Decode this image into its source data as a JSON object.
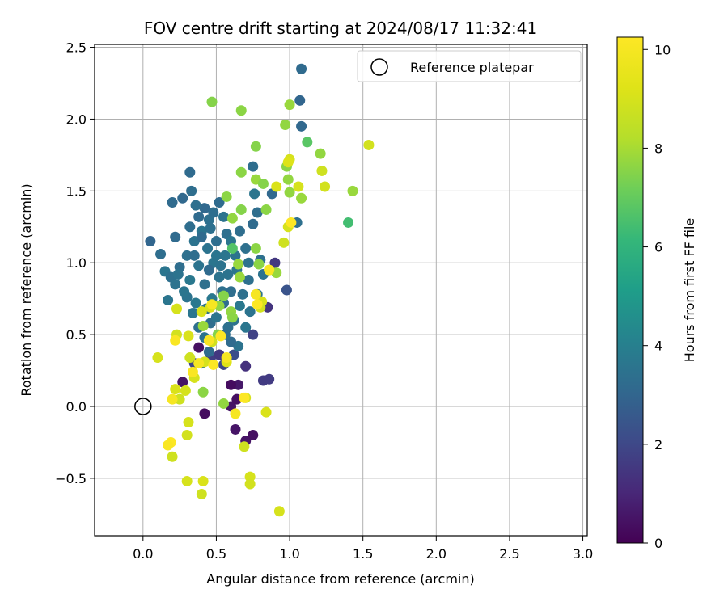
{
  "chart_data": {
    "type": "scatter",
    "title": "FOV centre drift starting at 2024/08/17 11:32:41",
    "xlabel": "Angular distance from reference (arcmin)",
    "ylabel": "Rotation from reference (arcmin)",
    "xlim": [
      -0.33,
      3.03
    ],
    "ylim": [
      -0.9,
      2.52
    ],
    "xticks": [
      0.0,
      0.5,
      1.0,
      1.5,
      2.0,
      2.5,
      3.0
    ],
    "yticks": [
      -0.5,
      0.0,
      0.5,
      1.0,
      1.5,
      2.0,
      2.5
    ],
    "xtick_labels": [
      "0.0",
      "0.5",
      "1.0",
      "1.5",
      "2.0",
      "2.5",
      "3.0"
    ],
    "ytick_labels": [
      "−0.5",
      "0.0",
      "0.5",
      "1.0",
      "1.5",
      "2.0",
      "2.5"
    ],
    "grid": true,
    "legend": {
      "position": "top-right",
      "entries": [
        "Reference platepar"
      ]
    },
    "reference_point": {
      "x": 0.0,
      "y": 0.0,
      "label": "Reference platepar"
    },
    "colorbar": {
      "label": "Hours from first FF file",
      "colormap": "viridis",
      "range": [
        0,
        10.25
      ],
      "ticks": [
        0,
        2,
        4,
        6,
        8,
        10
      ],
      "tick_labels": [
        "0",
        "2",
        "4",
        "6",
        "8",
        "10"
      ]
    },
    "points": [
      {
        "x": 0.27,
        "y": 0.17,
        "h": 0.5
      },
      {
        "x": 0.38,
        "y": 0.41,
        "h": 0.4
      },
      {
        "x": 0.42,
        "y": -0.05,
        "h": 0.3
      },
      {
        "x": 0.6,
        "y": 0.0,
        "h": 0.5
      },
      {
        "x": 0.64,
        "y": 0.05,
        "h": 0.4
      },
      {
        "x": 0.63,
        "y": -0.16,
        "h": 0.5
      },
      {
        "x": 0.65,
        "y": 0.15,
        "h": 0.6
      },
      {
        "x": 0.7,
        "y": -0.24,
        "h": 0.5
      },
      {
        "x": 0.75,
        "y": -0.2,
        "h": 0.4
      },
      {
        "x": 0.6,
        "y": 0.15,
        "h": 0.3
      },
      {
        "x": 0.82,
        "y": 0.18,
        "h": 1.6
      },
      {
        "x": 0.86,
        "y": 0.19,
        "h": 1.6
      },
      {
        "x": 0.7,
        "y": 0.28,
        "h": 1.3
      },
      {
        "x": 0.46,
        "y": 0.33,
        "h": 1.7
      },
      {
        "x": 0.52,
        "y": 0.36,
        "h": 1.5
      },
      {
        "x": 0.75,
        "y": 0.5,
        "h": 1.8
      },
      {
        "x": 0.85,
        "y": 0.69,
        "h": 1.4
      },
      {
        "x": 0.9,
        "y": 1.0,
        "h": 1.5
      },
      {
        "x": 0.98,
        "y": 0.81,
        "h": 2.4
      },
      {
        "x": 0.62,
        "y": 0.36,
        "h": 2.2
      },
      {
        "x": 0.35,
        "y": 0.3,
        "h": 1.9
      },
      {
        "x": 0.55,
        "y": 0.29,
        "h": 2.0
      },
      {
        "x": 1.08,
        "y": 2.35,
        "h": 3.2
      },
      {
        "x": 1.07,
        "y": 2.13,
        "h": 3.0
      },
      {
        "x": 1.08,
        "y": 1.95,
        "h": 3.1
      },
      {
        "x": 0.32,
        "y": 1.63,
        "h": 3.2
      },
      {
        "x": 0.75,
        "y": 1.67,
        "h": 3.3
      },
      {
        "x": 0.88,
        "y": 1.48,
        "h": 3.1
      },
      {
        "x": 0.2,
        "y": 1.42,
        "h": 3.2
      },
      {
        "x": 0.27,
        "y": 1.45,
        "h": 3.1
      },
      {
        "x": 0.33,
        "y": 1.5,
        "h": 3.3
      },
      {
        "x": 0.05,
        "y": 1.15,
        "h": 3.0
      },
      {
        "x": 0.12,
        "y": 1.06,
        "h": 3.3
      },
      {
        "x": 0.22,
        "y": 1.18,
        "h": 3.2
      },
      {
        "x": 0.15,
        "y": 0.94,
        "h": 3.6
      },
      {
        "x": 0.19,
        "y": 0.9,
        "h": 3.4
      },
      {
        "x": 0.22,
        "y": 0.85,
        "h": 3.5
      },
      {
        "x": 0.17,
        "y": 0.74,
        "h": 3.6
      },
      {
        "x": 0.25,
        "y": 0.97,
        "h": 3.3
      },
      {
        "x": 0.3,
        "y": 1.05,
        "h": 3.4
      },
      {
        "x": 0.32,
        "y": 1.25,
        "h": 3.3
      },
      {
        "x": 0.35,
        "y": 1.15,
        "h": 3.5
      },
      {
        "x": 0.38,
        "y": 1.32,
        "h": 3.2
      },
      {
        "x": 0.4,
        "y": 1.22,
        "h": 3.6
      },
      {
        "x": 0.42,
        "y": 1.38,
        "h": 3.1
      },
      {
        "x": 0.45,
        "y": 1.3,
        "h": 3.4
      },
      {
        "x": 0.48,
        "y": 1.35,
        "h": 3.3
      },
      {
        "x": 0.52,
        "y": 1.42,
        "h": 3.2
      },
      {
        "x": 0.55,
        "y": 1.32,
        "h": 3.5
      },
      {
        "x": 0.57,
        "y": 1.2,
        "h": 3.4
      },
      {
        "x": 0.6,
        "y": 1.15,
        "h": 3.6
      },
      {
        "x": 0.63,
        "y": 1.05,
        "h": 3.5
      },
      {
        "x": 0.66,
        "y": 1.22,
        "h": 3.3
      },
      {
        "x": 0.7,
        "y": 1.1,
        "h": 3.4
      },
      {
        "x": 0.72,
        "y": 1.0,
        "h": 3.5
      },
      {
        "x": 0.75,
        "y": 1.27,
        "h": 3.2
      },
      {
        "x": 0.78,
        "y": 1.35,
        "h": 3.3
      },
      {
        "x": 0.76,
        "y": 1.48,
        "h": 3.6
      },
      {
        "x": 0.8,
        "y": 1.02,
        "h": 3.4
      },
      {
        "x": 0.82,
        "y": 0.92,
        "h": 3.5
      },
      {
        "x": 0.78,
        "y": 0.78,
        "h": 3.6
      },
      {
        "x": 0.72,
        "y": 0.88,
        "h": 3.4
      },
      {
        "x": 0.66,
        "y": 0.7,
        "h": 3.7
      },
      {
        "x": 0.62,
        "y": 0.6,
        "h": 3.5
      },
      {
        "x": 0.58,
        "y": 0.55,
        "h": 3.4
      },
      {
        "x": 0.55,
        "y": 0.72,
        "h": 3.3
      },
      {
        "x": 0.52,
        "y": 0.9,
        "h": 3.5
      },
      {
        "x": 0.48,
        "y": 1.0,
        "h": 3.6
      },
      {
        "x": 0.45,
        "y": 0.95,
        "h": 3.2
      },
      {
        "x": 0.42,
        "y": 0.85,
        "h": 3.4
      },
      {
        "x": 0.38,
        "y": 0.98,
        "h": 3.5
      },
      {
        "x": 0.35,
        "y": 1.05,
        "h": 3.3
      },
      {
        "x": 0.32,
        "y": 0.88,
        "h": 3.7
      },
      {
        "x": 0.3,
        "y": 0.76,
        "h": 3.5
      },
      {
        "x": 0.34,
        "y": 0.65,
        "h": 3.6
      },
      {
        "x": 0.38,
        "y": 0.55,
        "h": 3.4
      },
      {
        "x": 0.42,
        "y": 0.48,
        "h": 3.5
      },
      {
        "x": 0.46,
        "y": 0.58,
        "h": 3.3
      },
      {
        "x": 0.5,
        "y": 0.62,
        "h": 3.6
      },
      {
        "x": 0.54,
        "y": 0.8,
        "h": 3.4
      },
      {
        "x": 0.58,
        "y": 0.92,
        "h": 3.5
      },
      {
        "x": 0.6,
        "y": 0.8,
        "h": 3.3
      },
      {
        "x": 0.64,
        "y": 0.95,
        "h": 3.6
      },
      {
        "x": 0.68,
        "y": 0.78,
        "h": 3.4
      },
      {
        "x": 0.44,
        "y": 1.1,
        "h": 3.5
      },
      {
        "x": 0.4,
        "y": 1.18,
        "h": 3.2
      },
      {
        "x": 0.36,
        "y": 0.72,
        "h": 3.7
      },
      {
        "x": 0.28,
        "y": 0.8,
        "h": 3.6
      },
      {
        "x": 0.24,
        "y": 0.92,
        "h": 3.5
      },
      {
        "x": 0.46,
        "y": 1.24,
        "h": 3.4
      },
      {
        "x": 0.5,
        "y": 1.15,
        "h": 3.3
      },
      {
        "x": 0.56,
        "y": 1.05,
        "h": 3.6
      },
      {
        "x": 0.53,
        "y": 0.98,
        "h": 3.5
      },
      {
        "x": 0.47,
        "y": 0.75,
        "h": 3.7
      },
      {
        "x": 0.43,
        "y": 0.68,
        "h": 3.4
      },
      {
        "x": 0.65,
        "y": 0.42,
        "h": 3.5
      },
      {
        "x": 0.6,
        "y": 0.45,
        "h": 3.2
      },
      {
        "x": 0.7,
        "y": 0.55,
        "h": 3.6
      },
      {
        "x": 0.56,
        "y": 0.5,
        "h": 3.3
      },
      {
        "x": 1.05,
        "y": 1.28,
        "h": 3.4
      },
      {
        "x": 0.4,
        "y": 0.3,
        "h": 3.5
      },
      {
        "x": 0.45,
        "y": 0.38,
        "h": 3.2
      },
      {
        "x": 0.73,
        "y": 0.66,
        "h": 3.5
      },
      {
        "x": 0.36,
        "y": 1.4,
        "h": 3.4
      },
      {
        "x": 0.5,
        "y": 1.05,
        "h": 3.6
      },
      {
        "x": 0.47,
        "y": 2.12,
        "h": 7.5
      },
      {
        "x": 0.67,
        "y": 2.06,
        "h": 7.6
      },
      {
        "x": 1.0,
        "y": 2.1,
        "h": 7.8
      },
      {
        "x": 0.97,
        "y": 1.96,
        "h": 7.7
      },
      {
        "x": 0.77,
        "y": 1.81,
        "h": 7.5
      },
      {
        "x": 1.12,
        "y": 1.84,
        "h": 6.8
      },
      {
        "x": 1.21,
        "y": 1.76,
        "h": 7.7
      },
      {
        "x": 0.67,
        "y": 1.63,
        "h": 7.6
      },
      {
        "x": 0.77,
        "y": 1.58,
        "h": 7.8
      },
      {
        "x": 0.82,
        "y": 1.55,
        "h": 7.5
      },
      {
        "x": 0.99,
        "y": 1.58,
        "h": 7.7
      },
      {
        "x": 0.98,
        "y": 1.67,
        "h": 7.6
      },
      {
        "x": 1.0,
        "y": 1.49,
        "h": 7.7
      },
      {
        "x": 1.08,
        "y": 1.45,
        "h": 7.8
      },
      {
        "x": 0.57,
        "y": 1.46,
        "h": 7.6
      },
      {
        "x": 0.67,
        "y": 1.37,
        "h": 7.5
      },
      {
        "x": 0.84,
        "y": 1.37,
        "h": 7.6
      },
      {
        "x": 0.61,
        "y": 1.31,
        "h": 7.7
      },
      {
        "x": 1.4,
        "y": 1.28,
        "h": 6.4
      },
      {
        "x": 1.43,
        "y": 1.5,
        "h": 7.8
      },
      {
        "x": 0.61,
        "y": 1.1,
        "h": 6.7
      },
      {
        "x": 0.77,
        "y": 1.1,
        "h": 7.6
      },
      {
        "x": 0.65,
        "y": 0.99,
        "h": 7.8
      },
      {
        "x": 0.79,
        "y": 0.99,
        "h": 7.6
      },
      {
        "x": 0.66,
        "y": 0.9,
        "h": 7.8
      },
      {
        "x": 0.55,
        "y": 0.77,
        "h": 7.5
      },
      {
        "x": 0.6,
        "y": 0.66,
        "h": 7.7
      },
      {
        "x": 0.61,
        "y": 0.62,
        "h": 7.6
      },
      {
        "x": 0.41,
        "y": 0.56,
        "h": 7.8
      },
      {
        "x": 0.51,
        "y": 0.5,
        "h": 7.5
      },
      {
        "x": 0.55,
        "y": 0.02,
        "h": 7.7
      },
      {
        "x": 0.41,
        "y": 0.1,
        "h": 7.6
      },
      {
        "x": 0.91,
        "y": 0.93,
        "h": 7.8
      },
      {
        "x": 0.52,
        "y": 0.7,
        "h": 7.7
      },
      {
        "x": 1.54,
        "y": 1.82,
        "h": 8.9
      },
      {
        "x": 1.0,
        "y": 1.72,
        "h": 9.0
      },
      {
        "x": 1.22,
        "y": 1.64,
        "h": 8.8
      },
      {
        "x": 0.91,
        "y": 1.53,
        "h": 9.1
      },
      {
        "x": 1.06,
        "y": 1.53,
        "h": 9.0
      },
      {
        "x": 1.24,
        "y": 1.53,
        "h": 8.9
      },
      {
        "x": 0.99,
        "y": 1.7,
        "h": 9.2
      },
      {
        "x": 0.96,
        "y": 1.14,
        "h": 8.8
      },
      {
        "x": 0.99,
        "y": 1.25,
        "h": 9.0
      },
      {
        "x": 0.23,
        "y": 0.68,
        "h": 9.0
      },
      {
        "x": 0.23,
        "y": 0.5,
        "h": 8.9
      },
      {
        "x": 0.31,
        "y": 0.49,
        "h": 9.1
      },
      {
        "x": 0.1,
        "y": 0.34,
        "h": 9.0
      },
      {
        "x": 0.32,
        "y": 0.34,
        "h": 8.8
      },
      {
        "x": 0.35,
        "y": 0.2,
        "h": 9.0
      },
      {
        "x": 0.22,
        "y": 0.12,
        "h": 9.1
      },
      {
        "x": 0.29,
        "y": 0.11,
        "h": 9.0
      },
      {
        "x": 0.25,
        "y": 0.05,
        "h": 8.8
      },
      {
        "x": 0.31,
        "y": -0.11,
        "h": 9.0
      },
      {
        "x": 0.3,
        "y": -0.2,
        "h": 8.9
      },
      {
        "x": 0.2,
        "y": -0.35,
        "h": 8.8
      },
      {
        "x": 0.3,
        "y": -0.52,
        "h": 9.0
      },
      {
        "x": 0.41,
        "y": -0.52,
        "h": 9.1
      },
      {
        "x": 0.4,
        "y": -0.61,
        "h": 8.8
      },
      {
        "x": 0.73,
        "y": -0.49,
        "h": 9.0
      },
      {
        "x": 0.73,
        "y": -0.54,
        "h": 8.9
      },
      {
        "x": 0.93,
        "y": -0.73,
        "h": 9.0
      },
      {
        "x": 0.84,
        "y": -0.04,
        "h": 9.1
      },
      {
        "x": 0.69,
        "y": -0.28,
        "h": 8.8
      },
      {
        "x": 0.7,
        "y": 0.06,
        "h": 9.0
      },
      {
        "x": 0.81,
        "y": 0.73,
        "h": 9.1
      },
      {
        "x": 0.8,
        "y": 0.69,
        "h": 8.9
      },
      {
        "x": 0.86,
        "y": 0.95,
        "h": 9.0
      },
      {
        "x": 0.4,
        "y": 0.66,
        "h": 9.1
      },
      {
        "x": 0.47,
        "y": 0.45,
        "h": 8.9
      },
      {
        "x": 0.42,
        "y": 0.31,
        "h": 9.0
      },
      {
        "x": 0.57,
        "y": 0.31,
        "h": 9.2
      },
      {
        "x": 0.46,
        "y": 0.69,
        "h": 9.1
      },
      {
        "x": 1.01,
        "y": 1.28,
        "h": 10.2
      },
      {
        "x": 0.22,
        "y": 0.46,
        "h": 10.1
      },
      {
        "x": 0.47,
        "y": 0.71,
        "h": 10.0
      },
      {
        "x": 0.53,
        "y": 0.49,
        "h": 10.2
      },
      {
        "x": 0.45,
        "y": 0.46,
        "h": 10.1
      },
      {
        "x": 0.38,
        "y": 0.3,
        "h": 10.0
      },
      {
        "x": 0.48,
        "y": 0.29,
        "h": 10.2
      },
      {
        "x": 0.57,
        "y": 0.34,
        "h": 10.0
      },
      {
        "x": 0.34,
        "y": 0.24,
        "h": 10.1
      },
      {
        "x": 0.2,
        "y": 0.05,
        "h": 10.0
      },
      {
        "x": 0.19,
        "y": -0.25,
        "h": 10.2
      },
      {
        "x": 0.17,
        "y": -0.27,
        "h": 10.1
      },
      {
        "x": 0.63,
        "y": -0.05,
        "h": 10.0
      },
      {
        "x": 0.69,
        "y": 0.06,
        "h": 10.2
      },
      {
        "x": 0.77,
        "y": 0.78,
        "h": 10.0
      },
      {
        "x": 0.86,
        "y": 0.95,
        "h": 10.1
      },
      {
        "x": 0.78,
        "y": 0.71,
        "h": 10.2
      }
    ]
  }
}
